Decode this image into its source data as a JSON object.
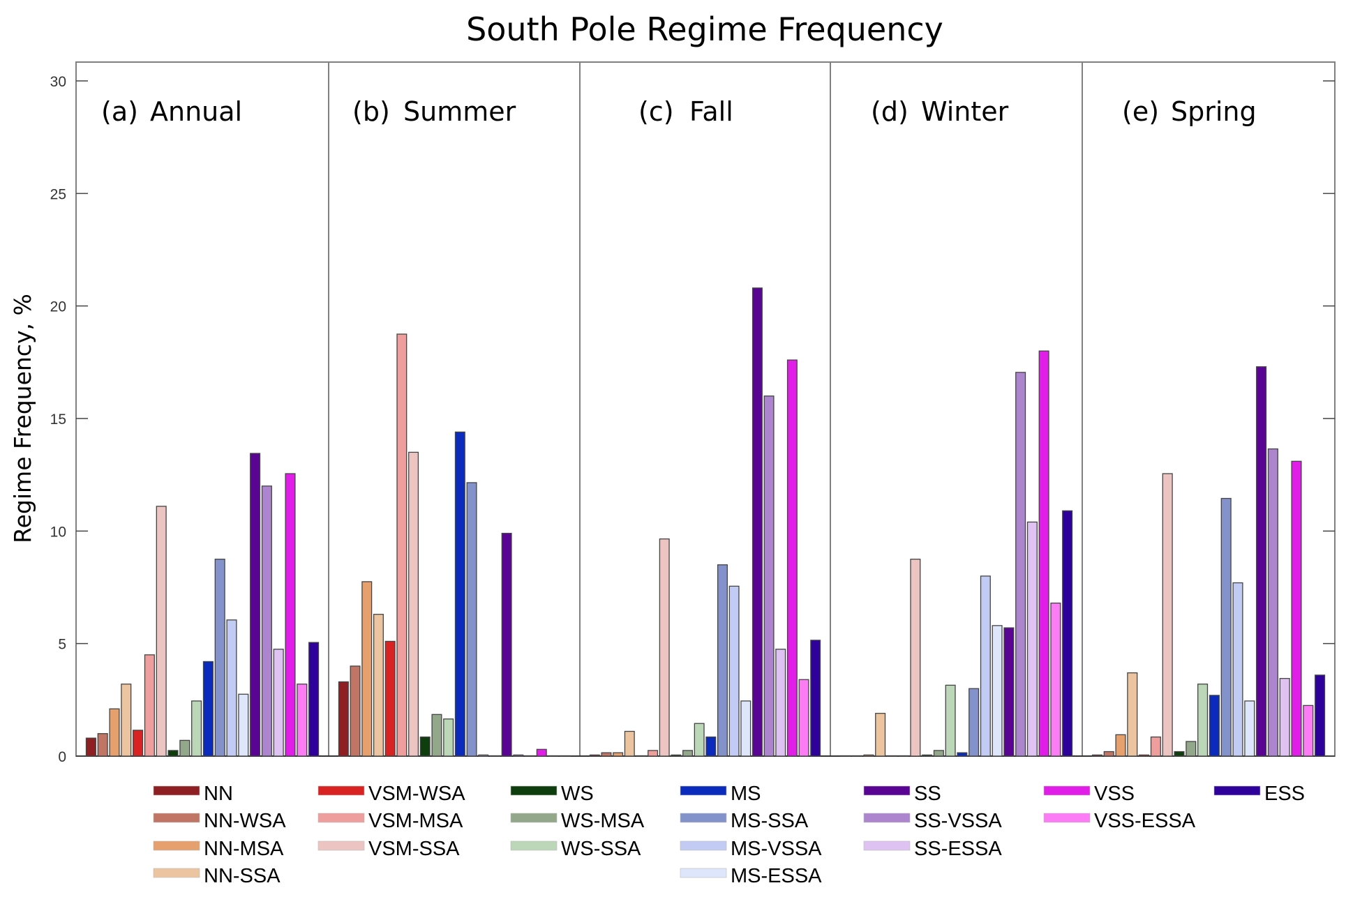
{
  "chart_data": {
    "type": "bar",
    "title": "South Pole Regime Frequency",
    "xlabel": "",
    "ylabel": "Regime Frequency, %",
    "ylim": [
      0,
      30
    ],
    "yticks": [
      0,
      5,
      10,
      15,
      20,
      25,
      30
    ],
    "grid": false,
    "legend_position": "bottom",
    "categories": [
      "NN",
      "NN-WSA",
      "NN-MSA",
      "NN-SSA",
      "VSM-WSA",
      "VSM-MSA",
      "VSM-SSA",
      "WS",
      "WS-MSA",
      "WS-SSA",
      "MS",
      "MS-SSA",
      "MS-VSSA",
      "MS-ESSA",
      "SS",
      "SS-VSSA",
      "SS-ESSA",
      "VSS",
      "VSS-ESSA",
      "ESS"
    ],
    "colors": [
      "#8e2024",
      "#c07565",
      "#e5a06e",
      "#ecc4a0",
      "#d92222",
      "#ee9e9c",
      "#ecc5c3",
      "#0e3d0e",
      "#93a78a",
      "#bcd6b8",
      "#0a2bbb",
      "#8492cb",
      "#c2cbf3",
      "#dde6fb",
      "#5a0494",
      "#ac85ce",
      "#dec2f2",
      "#e01ee8",
      "#fb7cf5",
      "#2e019b"
    ],
    "panels": [
      {
        "label": "(a)",
        "name": "Annual",
        "values": [
          0.8,
          1.0,
          2.1,
          3.2,
          1.15,
          4.5,
          11.1,
          0.25,
          0.7,
          2.45,
          4.2,
          8.75,
          6.05,
          2.75,
          13.45,
          12.0,
          4.75,
          12.55,
          3.2,
          5.05
        ]
      },
      {
        "label": "(b)",
        "name": "Summer",
        "values": [
          3.3,
          4.0,
          7.75,
          6.3,
          5.1,
          18.75,
          13.5,
          0.85,
          1.85,
          1.65,
          14.4,
          12.15,
          0.05,
          0.0,
          9.9,
          0.05,
          0.0,
          0.3,
          0.0,
          0.0
        ]
      },
      {
        "label": "(c)",
        "name": "Fall",
        "values": [
          0.05,
          0.15,
          0.15,
          1.1,
          0.0,
          0.25,
          9.65,
          0.05,
          0.25,
          1.45,
          0.85,
          8.5,
          7.55,
          2.45,
          20.8,
          16.0,
          4.75,
          17.6,
          3.4,
          5.15
        ]
      },
      {
        "label": "(d)",
        "name": "Winter",
        "values": [
          0.0,
          0.0,
          0.05,
          1.9,
          0.0,
          0.0,
          8.75,
          0.05,
          0.25,
          3.15,
          0.15,
          3.0,
          8.0,
          5.8,
          5.7,
          17.05,
          10.4,
          18.0,
          6.8,
          10.9
        ]
      },
      {
        "label": "(e)",
        "name": "Spring",
        "values": [
          0.05,
          0.2,
          0.95,
          3.7,
          0.05,
          0.85,
          12.55,
          0.2,
          0.65,
          3.2,
          2.7,
          11.45,
          7.7,
          2.45,
          17.3,
          13.65,
          3.45,
          13.1,
          2.25,
          3.6
        ]
      }
    ],
    "legend_columns": [
      [
        "NN",
        "NN-WSA",
        "NN-MSA",
        "NN-SSA"
      ],
      [
        "VSM-WSA",
        "VSM-MSA",
        "VSM-SSA"
      ],
      [
        "WS",
        "WS-MSA",
        "WS-SSA"
      ],
      [
        "MS",
        "MS-SSA",
        "MS-VSSA",
        "MS-ESSA"
      ],
      [
        "SS",
        "SS-VSSA",
        "SS-ESSA"
      ],
      [
        "VSS",
        "VSS-ESSA"
      ],
      [
        "ESS"
      ]
    ]
  }
}
